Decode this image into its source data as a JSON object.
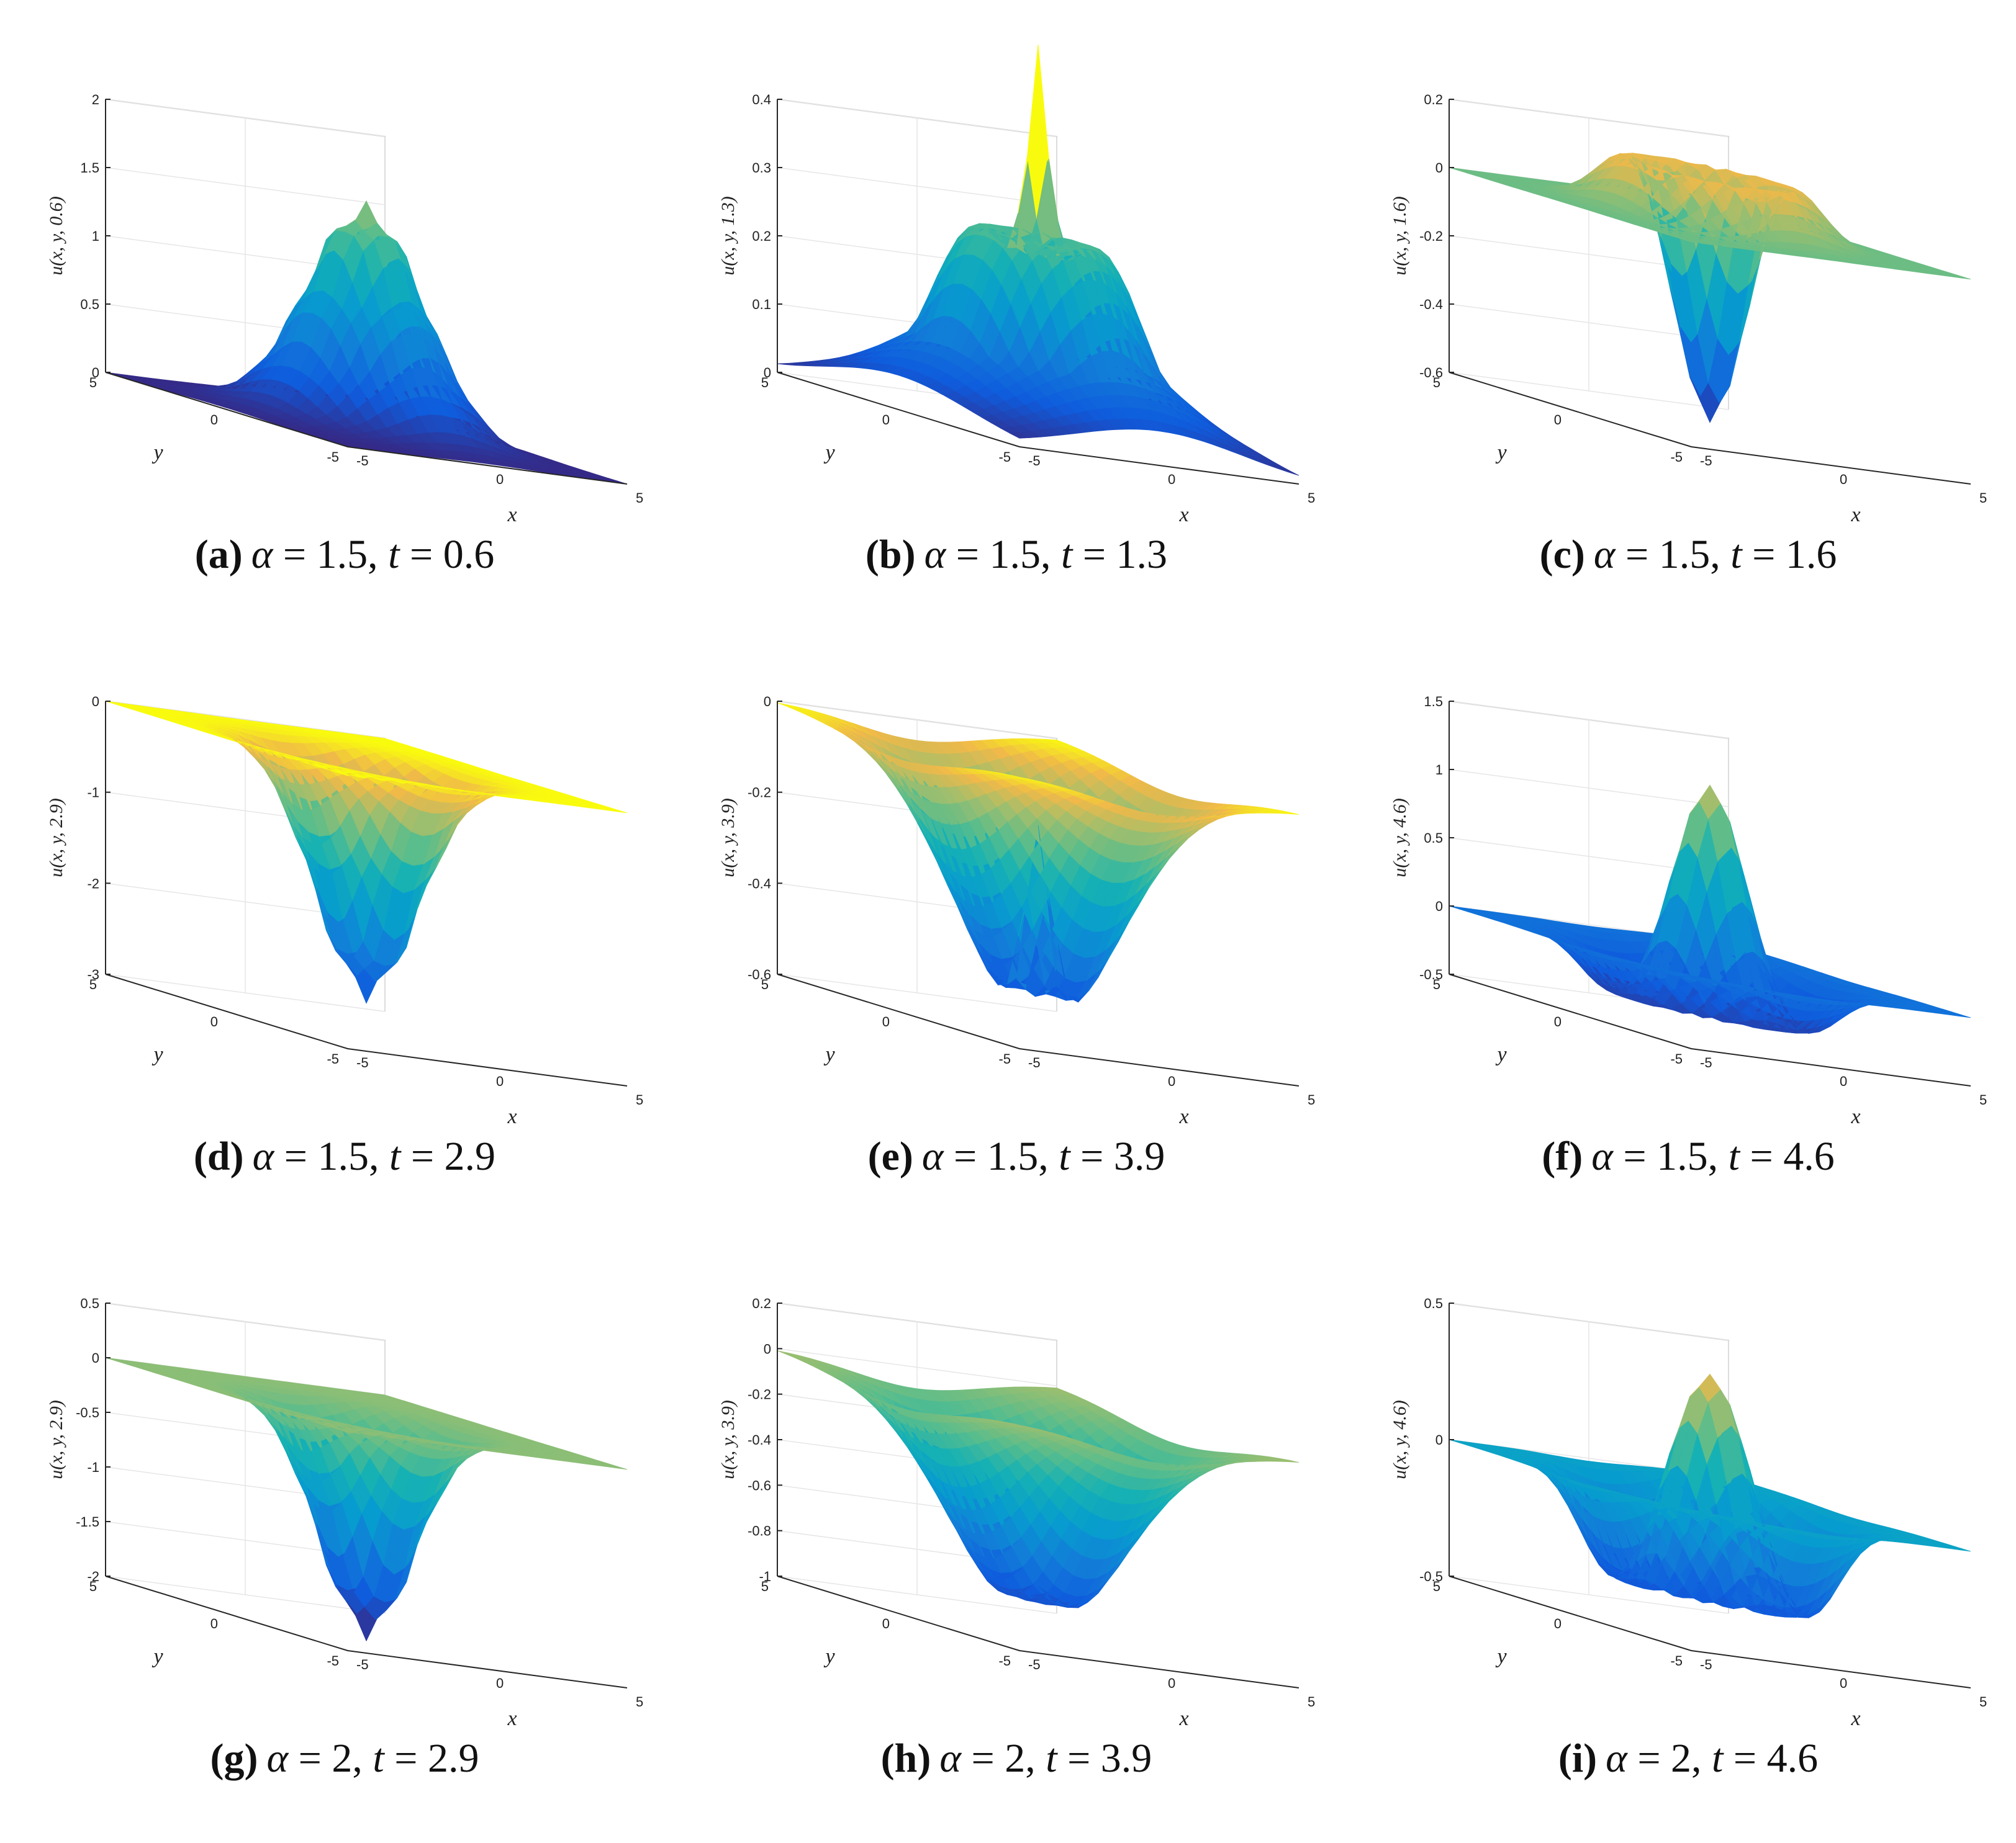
{
  "chart_data": [
    {
      "type": "surface",
      "letter": "(a)",
      "caption_alpha": "1.5",
      "caption_t": "0.6",
      "ylabel": "u(x, y, 0.6)",
      "xlabel": "x",
      "ylabel_plane": "y",
      "zlim": [
        0,
        2
      ],
      "zticks": [
        0,
        0.5,
        1,
        1.5,
        2
      ],
      "x_range": [
        -5,
        5
      ],
      "y_range": [
        -5,
        5
      ],
      "xticks": [
        -5,
        0,
        5
      ],
      "yticks": [
        -5,
        0,
        5
      ],
      "shape": {
        "kind": "peak",
        "amp": 1.6,
        "width": 1.6
      },
      "colormap": "parula"
    },
    {
      "type": "surface",
      "letter": "(b)",
      "caption_alpha": "1.5",
      "caption_t": "1.3",
      "ylabel": "u(x, y, 1.3)",
      "xlabel": "x",
      "ylabel_plane": "y",
      "zlim": [
        0,
        0.4
      ],
      "zticks": [
        0,
        0.1,
        0.2,
        0.3,
        0.4
      ],
      "x_range": [
        -5,
        5
      ],
      "y_range": [
        -5,
        5
      ],
      "xticks": [
        -5,
        0,
        5
      ],
      "yticks": [
        -5,
        0,
        5
      ],
      "shape": {
        "kind": "ring_spike",
        "ring_amp": 0.28,
        "ring_r": 1.6,
        "ring_w": 1.3,
        "spike_amp": 0.4,
        "spike_w": 0.35
      },
      "colormap": "parula"
    },
    {
      "type": "surface",
      "letter": "(c)",
      "caption_alpha": "1.5",
      "caption_t": "1.6",
      "ylabel": "u(x, y, 1.6)",
      "xlabel": "x",
      "ylabel_plane": "y",
      "zlim": [
        -0.6,
        0.2
      ],
      "zticks": [
        -0.6,
        -0.4,
        -0.2,
        0,
        0.2
      ],
      "x_range": [
        -5,
        5
      ],
      "y_range": [
        -5,
        5
      ],
      "xticks": [
        -5,
        0,
        5
      ],
      "yticks": [
        -5,
        0,
        5
      ],
      "shape": {
        "kind": "well_ring",
        "well_amp": -0.6,
        "well_w": 1.0,
        "ring_amp": 0.2,
        "ring_r": 2.0,
        "ring_w": 0.9
      },
      "colormap": "parula"
    },
    {
      "type": "surface",
      "letter": "(d)",
      "caption_alpha": "1.5",
      "caption_t": "2.9",
      "ylabel": "u(x, y, 2.9)",
      "xlabel": "x",
      "ylabel_plane": "y",
      "zlim": [
        -3,
        0
      ],
      "zticks": [
        -3,
        -2,
        -1,
        0
      ],
      "x_range": [
        -5,
        5
      ],
      "y_range": [
        -5,
        5
      ],
      "xticks": [
        -5,
        0,
        5
      ],
      "yticks": [
        -5,
        0,
        5
      ],
      "shape": {
        "kind": "peak",
        "amp": -2.6,
        "width": 1.4
      },
      "colormap": "parula"
    },
    {
      "type": "surface",
      "letter": "(e)",
      "caption_alpha": "1.5",
      "caption_t": "3.9",
      "ylabel": "u(x, y, 3.9)",
      "xlabel": "x",
      "ylabel_plane": "y",
      "zlim": [
        -0.6,
        0
      ],
      "zticks": [
        -0.6,
        -0.4,
        -0.2,
        0
      ],
      "x_range": [
        -5,
        5
      ],
      "y_range": [
        -5,
        5
      ],
      "xticks": [
        -5,
        0,
        5
      ],
      "yticks": [
        -5,
        0,
        5
      ],
      "shape": {
        "kind": "basin_bump",
        "basin_amp": -0.6,
        "basin_w": 2.2,
        "bump_amp": 0.45,
        "bump_w": 0.4
      },
      "colormap": "parula"
    },
    {
      "type": "surface",
      "letter": "(f)",
      "caption_alpha": "1.5",
      "caption_t": "4.6",
      "ylabel": "u(x, y, 4.6)",
      "xlabel": "x",
      "ylabel_plane": "y",
      "zlim": [
        -0.5,
        1.5
      ],
      "zticks": [
        -0.5,
        0,
        0.5,
        1,
        1.5
      ],
      "x_range": [
        -5,
        5
      ],
      "y_range": [
        -5,
        5
      ],
      "xticks": [
        -5,
        0,
        5
      ],
      "yticks": [
        -5,
        0,
        5
      ],
      "shape": {
        "kind": "peak_trough",
        "amp": 1.3,
        "width": 0.9,
        "trough_amp": -0.5,
        "trough_w": 2.8
      },
      "colormap": "parula"
    },
    {
      "type": "surface",
      "letter": "(g)",
      "caption_alpha": "2",
      "caption_t": "2.9",
      "ylabel": "u(x, y, 2.9)",
      "xlabel": "x",
      "ylabel_plane": "y",
      "zlim": [
        -2,
        0.5
      ],
      "zticks": [
        -2,
        -1.5,
        -1,
        -0.5,
        0,
        0.5
      ],
      "x_range": [
        -5,
        5
      ],
      "y_range": [
        -5,
        5
      ],
      "xticks": [
        -5,
        0,
        5
      ],
      "yticks": [
        -5,
        0,
        5
      ],
      "shape": {
        "kind": "peak",
        "amp": -2.0,
        "width": 1.3
      },
      "colormap": "parula"
    },
    {
      "type": "surface",
      "letter": "(h)",
      "caption_alpha": "2",
      "caption_t": "3.9",
      "ylabel": "u(x, y, 3.9)",
      "xlabel": "x",
      "ylabel_plane": "y",
      "zlim": [
        -1,
        0.2
      ],
      "zticks": [
        -1,
        -0.8,
        -0.6,
        -0.4,
        -0.2,
        0,
        0.2
      ],
      "x_range": [
        -5,
        5
      ],
      "y_range": [
        -5,
        5
      ],
      "xticks": [
        -5,
        0,
        5
      ],
      "yticks": [
        -5,
        0,
        5
      ],
      "shape": {
        "kind": "basin_bump",
        "basin_amp": -1.0,
        "basin_w": 2.3,
        "bump_amp": 0.2,
        "bump_w": 0.6
      },
      "colormap": "parula"
    },
    {
      "type": "surface",
      "letter": "(i)",
      "caption_alpha": "2",
      "caption_t": "4.6",
      "ylabel": "u(x, y, 4.6)",
      "xlabel": "x",
      "ylabel_plane": "y",
      "zlim": [
        -0.5,
        0.5
      ],
      "zticks": [
        -0.5,
        0,
        0.5
      ],
      "x_range": [
        -5,
        5
      ],
      "y_range": [
        -5,
        5
      ],
      "xticks": [
        -5,
        0,
        5
      ],
      "yticks": [
        -5,
        0,
        5
      ],
      "shape": {
        "kind": "peak_trough",
        "amp": 0.45,
        "width": 0.9,
        "trough_amp": -0.5,
        "trough_w": 2.6
      },
      "colormap": "parula"
    }
  ]
}
